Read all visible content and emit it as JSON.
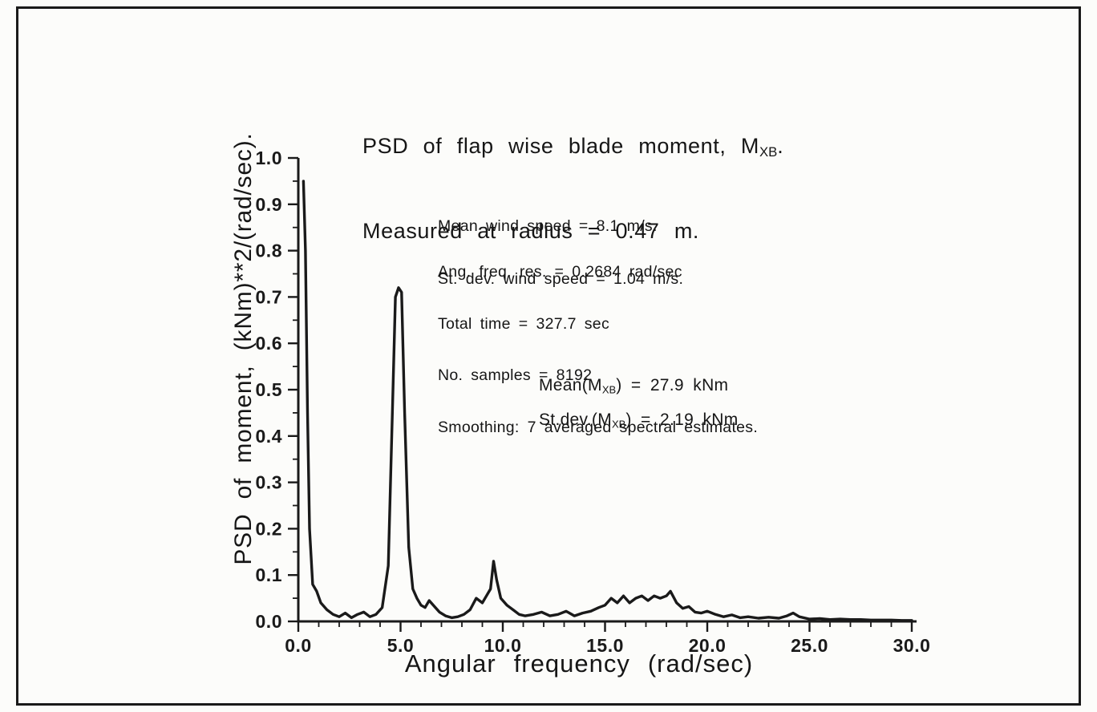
{
  "figure": {
    "title_line1_prefix": "PSD of flap wise blade moment, M",
    "title_sub": "XB",
    "title_line1_suffix": ".",
    "title_line2": "Measured at radius = 0.47 m.",
    "xlabel": "Angular frequency (rad/sec)",
    "ylabel": "PSD of moment, (kNm)**2/(rad/sec).",
    "annotations": {
      "wind_mean": "Mean wind speed = 8.1 m/s.",
      "wind_stdev": "St. dev. wind speed = 1.04 m/s.",
      "freq_res": "Ang. freq. res. = 0.2684 rad/sec",
      "total_time": "Total time = 327.7 sec",
      "num_samples": "No. samples = 8192",
      "smoothing": "Smoothing: 7 averaged spectral estimates.",
      "mean_prefix": "Mean(M",
      "mean_sub": "XB",
      "mean_suffix": ") = 27.9 kNm",
      "stdev_prefix": "St.dev.(M",
      "stdev_sub": "XB",
      "stdev_suffix": ") = 2.19 kNm"
    }
  },
  "chart_data": {
    "type": "line",
    "title": "PSD of flap wise blade moment, MXB. Measured at radius = 0.47 m.",
    "xlabel": "Angular frequency (rad/sec)",
    "ylabel": "PSD of moment, (kNm)**2/(rad/sec).",
    "xlim": [
      0,
      30
    ],
    "ylim": [
      0,
      1.0
    ],
    "grid": false,
    "line_color": "#1a1a1a",
    "x_major_ticks": [
      0,
      5,
      10,
      15,
      20,
      25,
      30
    ],
    "x_tick_labels": [
      "0.0",
      "5.0",
      "10.0",
      "15.0",
      "20.0",
      "25.0",
      "30.0"
    ],
    "x_minor_step": 1,
    "y_major_ticks": [
      0,
      0.1,
      0.2,
      0.3,
      0.4,
      0.5,
      0.6,
      0.7,
      0.8,
      0.9,
      1.0
    ],
    "y_tick_labels": [
      "0.0",
      "0.1",
      "0.2",
      "0.3",
      "0.4",
      "0.5",
      "0.6",
      "0.7",
      "0.8",
      "0.9",
      "1.0"
    ],
    "y_minor_step": 0.05,
    "x": [
      0.25,
      0.35,
      0.45,
      0.55,
      0.7,
      0.9,
      1.1,
      1.4,
      1.7,
      2.0,
      2.3,
      2.6,
      2.9,
      3.2,
      3.5,
      3.8,
      4.1,
      4.4,
      4.6,
      4.75,
      4.9,
      5.05,
      5.2,
      5.4,
      5.6,
      5.8,
      6.0,
      6.2,
      6.4,
      6.6,
      6.9,
      7.2,
      7.5,
      7.8,
      8.1,
      8.4,
      8.7,
      9.0,
      9.2,
      9.4,
      9.55,
      9.7,
      9.9,
      10.2,
      10.5,
      10.8,
      11.1,
      11.5,
      11.9,
      12.3,
      12.7,
      13.1,
      13.5,
      13.9,
      14.3,
      14.7,
      15.0,
      15.3,
      15.6,
      15.9,
      16.2,
      16.5,
      16.8,
      17.1,
      17.4,
      17.7,
      18.0,
      18.2,
      18.5,
      18.8,
      19.1,
      19.4,
      19.7,
      20.0,
      20.4,
      20.8,
      21.2,
      21.6,
      22.0,
      22.5,
      23.0,
      23.5,
      23.9,
      24.2,
      24.5,
      25.0,
      25.5,
      26.0,
      26.5,
      27.0,
      27.5,
      28.0,
      28.5,
      29.0,
      29.5,
      30.0
    ],
    "y": [
      0.95,
      0.8,
      0.45,
      0.2,
      0.08,
      0.065,
      0.04,
      0.025,
      0.015,
      0.01,
      0.018,
      0.008,
      0.015,
      0.02,
      0.01,
      0.015,
      0.03,
      0.12,
      0.45,
      0.7,
      0.72,
      0.71,
      0.45,
      0.16,
      0.07,
      0.05,
      0.035,
      0.03,
      0.045,
      0.035,
      0.02,
      0.012,
      0.008,
      0.01,
      0.015,
      0.025,
      0.05,
      0.04,
      0.055,
      0.07,
      0.13,
      0.09,
      0.05,
      0.035,
      0.025,
      0.015,
      0.012,
      0.015,
      0.02,
      0.012,
      0.015,
      0.022,
      0.012,
      0.018,
      0.022,
      0.03,
      0.035,
      0.05,
      0.04,
      0.055,
      0.04,
      0.05,
      0.055,
      0.045,
      0.055,
      0.05,
      0.055,
      0.065,
      0.04,
      0.028,
      0.032,
      0.02,
      0.018,
      0.022,
      0.015,
      0.01,
      0.014,
      0.008,
      0.01,
      0.007,
      0.009,
      0.007,
      0.012,
      0.018,
      0.01,
      0.005,
      0.006,
      0.004,
      0.005,
      0.004,
      0.004,
      0.003,
      0.003,
      0.003,
      0.002,
      0.002
    ],
    "annotations": [
      "Mean wind speed = 8.1 m/s.",
      "St. dev. wind speed = 1.04 m/s.",
      "Ang. freq. res. = 0.2684 rad/sec",
      "Total time = 327.7 sec",
      "No. samples = 8192",
      "Smoothing: 7 averaged spectral estimates.",
      "Mean(MXB) = 27.9 kNm",
      "St.dev.(MXB) = 2.19 kNm"
    ]
  }
}
